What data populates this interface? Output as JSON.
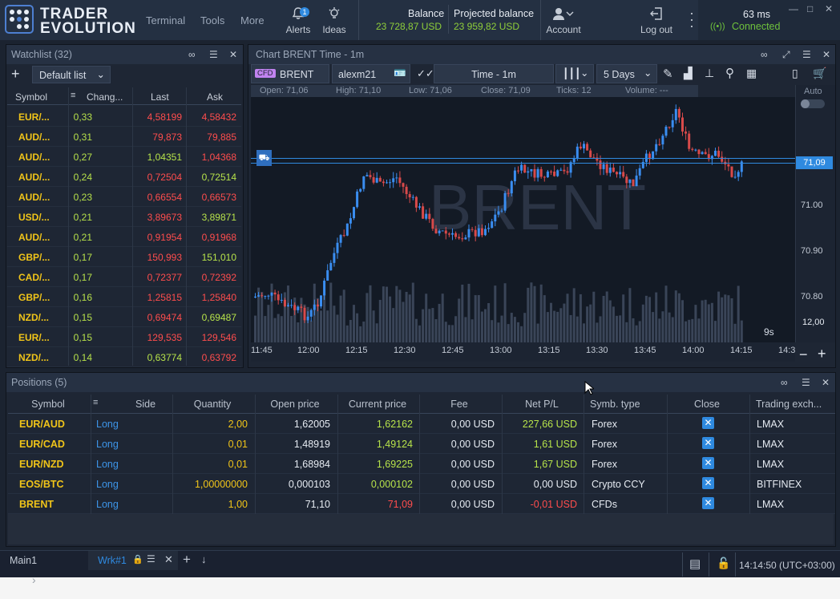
{
  "brand": {
    "line1": "TRADER",
    "line2": "EVOLUTION"
  },
  "menu": [
    "Terminal",
    "Tools",
    "More"
  ],
  "topicons": {
    "alerts": "Alerts",
    "alerts_badge": "1",
    "ideas": "Ideas",
    "account": "Account",
    "logout": "Log out"
  },
  "balance": {
    "label": "Balance",
    "value": "23 728,87 USD"
  },
  "projected": {
    "label": "Projected balance",
    "value": "23 959,82 USD"
  },
  "connection": {
    "latency": "63 ms",
    "status": "Connected"
  },
  "watchlist": {
    "title": "Watchlist (32)",
    "list_name": "Default list",
    "headers": {
      "symbol": "Symbol",
      "change": "Chang...",
      "last": "Last",
      "ask": "Ask"
    },
    "rows": [
      {
        "symbol": "EUR/...",
        "change": "0,33",
        "last": "4,58199",
        "ask": "4,58432",
        "last_dir": "dn",
        "ask_dir": "dn"
      },
      {
        "symbol": "AUD/...",
        "change": "0,31",
        "last": "79,873",
        "ask": "79,885",
        "last_dir": "dn",
        "ask_dir": "dn"
      },
      {
        "symbol": "AUD/...",
        "change": "0,27",
        "last": "1,04351",
        "ask": "1,04368",
        "last_dir": "up",
        "ask_dir": "dn"
      },
      {
        "symbol": "AUD/...",
        "change": "0,24",
        "last": "0,72504",
        "ask": "0,72514",
        "last_dir": "dn",
        "ask_dir": "up"
      },
      {
        "symbol": "AUD/...",
        "change": "0,23",
        "last": "0,66554",
        "ask": "0,66573",
        "last_dir": "dn",
        "ask_dir": "dn"
      },
      {
        "symbol": "USD/...",
        "change": "0,21",
        "last": "3,89673",
        "ask": "3,89871",
        "last_dir": "dn",
        "ask_dir": "up"
      },
      {
        "symbol": "AUD/...",
        "change": "0,21",
        "last": "0,91954",
        "ask": "0,91968",
        "last_dir": "dn",
        "ask_dir": "dn"
      },
      {
        "symbol": "GBP/...",
        "change": "0,17",
        "last": "150,993",
        "ask": "151,010",
        "last_dir": "dn",
        "ask_dir": "up"
      },
      {
        "symbol": "CAD/...",
        "change": "0,17",
        "last": "0,72377",
        "ask": "0,72392",
        "last_dir": "dn",
        "ask_dir": "dn"
      },
      {
        "symbol": "GBP/...",
        "change": "0,16",
        "last": "1,25815",
        "ask": "1,25840",
        "last_dir": "dn",
        "ask_dir": "dn"
      },
      {
        "symbol": "NZD/...",
        "change": "0,15",
        "last": "0,69474",
        "ask": "0,69487",
        "last_dir": "dn",
        "ask_dir": "up"
      },
      {
        "symbol": "EUR/...",
        "change": "0,15",
        "last": "129,535",
        "ask": "129,546",
        "last_dir": "dn",
        "ask_dir": "dn"
      },
      {
        "symbol": "NZD/...",
        "change": "0,14",
        "last": "0,63774",
        "ask": "0,63792",
        "last_dir": "up",
        "ask_dir": "dn"
      }
    ]
  },
  "chart": {
    "title": "Chart BRENT Time - 1m",
    "cfd_badge": "CFD",
    "symbol": "BRENT",
    "account": "alexm21",
    "timeframe": "Time - 1m",
    "range": "5 Days",
    "info": {
      "open": "Open: 71,06",
      "high": "High: 71,10",
      "low": "Low: 71,06",
      "close": "Close: 71,09",
      "ticks": "Ticks: 12",
      "volume": "Volume: ---"
    },
    "watermark": "BRENT",
    "auto_label": "Auto",
    "price_ticks": [
      "71.00",
      "70.90",
      "70.80"
    ],
    "current_price": "71,09",
    "volume_label": "12,00",
    "countdown": "9s",
    "time_ticks": [
      "11:45",
      "12:00",
      "12:15",
      "12:30",
      "12:45",
      "13:00",
      "13:15",
      "13:30",
      "13:45",
      "14:00",
      "14:15",
      "14:3"
    ]
  },
  "positions": {
    "title": "Positions (5)",
    "headers": [
      "Symbol",
      "Side",
      "Quantity",
      "Open price",
      "Current price",
      "Fee",
      "Net P/L",
      "Symb. type",
      "Close",
      "Trading exch..."
    ],
    "rows": [
      {
        "symbol": "EUR/AUD",
        "side": "Long",
        "qty": "2,00",
        "open": "1,62005",
        "current": "1,62162",
        "cur_dir": "up",
        "fee": "0,00 USD",
        "pl": "227,66 USD",
        "pl_dir": "up",
        "type": "Forex",
        "exch": "LMAX"
      },
      {
        "symbol": "EUR/CAD",
        "side": "Long",
        "qty": "0,01",
        "open": "1,48919",
        "current": "1,49124",
        "cur_dir": "up",
        "fee": "0,00 USD",
        "pl": "1,61 USD",
        "pl_dir": "up",
        "type": "Forex",
        "exch": "LMAX"
      },
      {
        "symbol": "EUR/NZD",
        "side": "Long",
        "qty": "0,01",
        "open": "1,68984",
        "current": "1,69225",
        "cur_dir": "up",
        "fee": "0,00 USD",
        "pl": "1,67 USD",
        "pl_dir": "up",
        "type": "Forex",
        "exch": "LMAX"
      },
      {
        "symbol": "EOS/BTC",
        "side": "Long",
        "qty": "1,00000000",
        "open": "0,000103",
        "current": "0,000102",
        "cur_dir": "up",
        "fee": "0,00 USD",
        "pl": "0,00 USD",
        "pl_dir": "neutral",
        "type": "Crypto CCY",
        "exch": "BITFINEX"
      },
      {
        "symbol": "BRENT",
        "side": "Long",
        "qty": "1,00",
        "open": "71,10",
        "current": "71,09",
        "cur_dir": "dn",
        "fee": "0,00 USD",
        "pl": "-0,01 USD",
        "pl_dir": "dn",
        "type": "CFDs",
        "exch": "LMAX"
      }
    ]
  },
  "bottom": {
    "tab_main": "Main1",
    "tab_wrk": "Wrk#1",
    "clock": "14:14:50 (UTC+03:00)"
  },
  "colors": {
    "accent": "#2f8ae0",
    "up": "#b7e34a",
    "down": "#ff4d4d",
    "symbol": "#f0c419"
  }
}
